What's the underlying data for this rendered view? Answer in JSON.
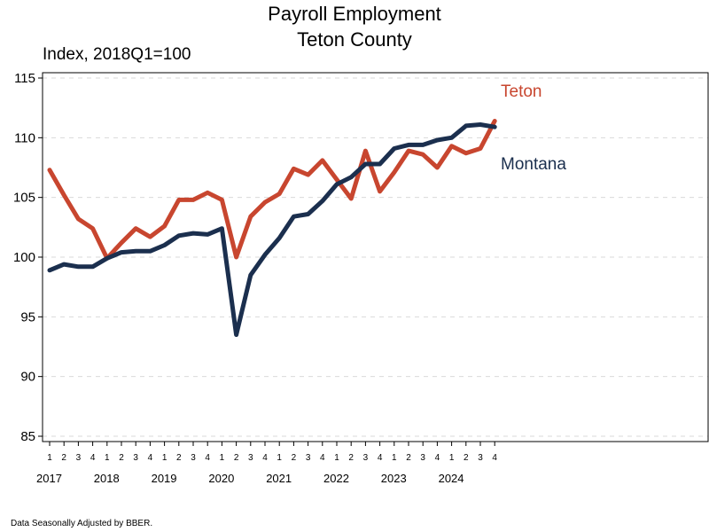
{
  "chart_data": {
    "type": "line",
    "title": "Payroll Employment",
    "subtitle": "Teton County",
    "ylabel": "Index, 2018Q1=100",
    "ylim": [
      85,
      115
    ],
    "yticks": [
      85,
      90,
      95,
      100,
      105,
      110,
      115
    ],
    "grid": "horizontal-dashed",
    "x_quarter_labels": [
      "1",
      "2",
      "3",
      "4",
      "1",
      "2",
      "3",
      "4",
      "1",
      "2",
      "3",
      "4",
      "1",
      "2",
      "3",
      "4",
      "1",
      "2",
      "3",
      "4",
      "1",
      "2",
      "3",
      "4",
      "1",
      "2",
      "3",
      "4",
      "1",
      "2",
      "3",
      "4"
    ],
    "x_year_labels": [
      "2017",
      "2018",
      "2019",
      "2020",
      "2021",
      "2022",
      "2023",
      "2024"
    ],
    "series": [
      {
        "name": "Teton",
        "color": "#c8462f",
        "values": [
          107.3,
          105.2,
          103.2,
          102.4,
          99.9,
          101.2,
          102.4,
          101.7,
          102.6,
          104.8,
          104.8,
          105.4,
          104.8,
          100.0,
          103.4,
          104.6,
          105.3,
          107.4,
          106.9,
          108.1,
          106.5,
          104.9,
          108.9,
          105.5,
          107.1,
          108.9,
          108.6,
          107.5,
          109.3,
          108.7,
          109.1,
          111.4
        ]
      },
      {
        "name": "Montana",
        "color": "#1b2f4e",
        "values": [
          98.9,
          99.4,
          99.2,
          99.2,
          99.9,
          100.4,
          100.5,
          100.5,
          101.0,
          101.8,
          102.0,
          101.9,
          102.4,
          93.5,
          98.5,
          100.2,
          101.6,
          103.4,
          103.6,
          104.7,
          106.1,
          106.7,
          107.8,
          107.8,
          109.1,
          109.4,
          109.4,
          109.8,
          110.0,
          111.0,
          111.1,
          110.9
        ]
      }
    ]
  },
  "footnote": "Data Seasonally Adjusted by BBER."
}
